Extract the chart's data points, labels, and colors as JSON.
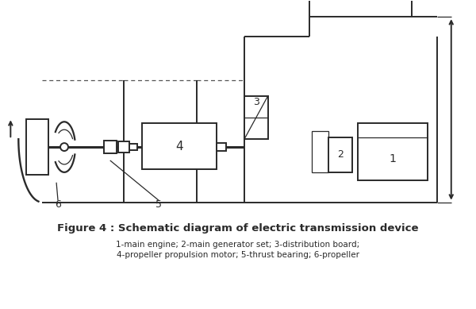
{
  "title": "Figure 4 : Schematic diagram of electric transmission device",
  "caption_line1": "1-main engine; 2-main generator set; 3-distribution board;",
  "caption_line2": "4-propeller propulsion motor; 5-thrust bearing; 6-propeller",
  "bg_color": "#ffffff",
  "line_color": "#2a2a2a",
  "label_color": "#2a2a2a",
  "title_fontsize": 9.5,
  "caption_fontsize": 7.5
}
